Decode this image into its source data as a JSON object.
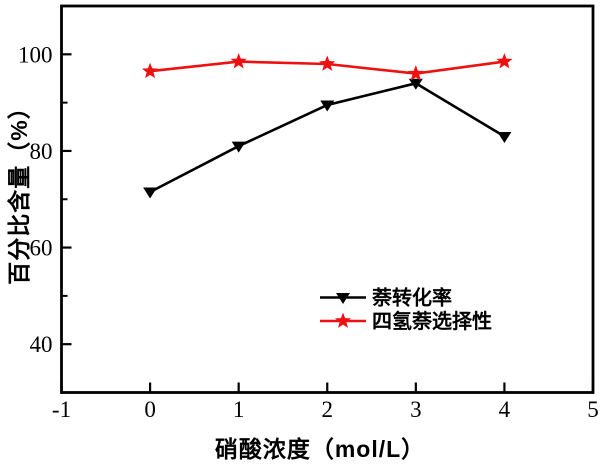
{
  "chart_data": {
    "type": "line",
    "title": "",
    "xlabel": "硝酸浓度（mol/L）",
    "ylabel": "百分比含量（%）",
    "x": [
      0,
      1,
      2,
      3,
      4
    ],
    "series": [
      {
        "name": "萘转化率",
        "color": "#000000",
        "marker": "triangle-down",
        "values": [
          71.5,
          81,
          89.5,
          94,
          83
        ]
      },
      {
        "name": "四氢萘选择性",
        "color": "#ee1111",
        "marker": "star",
        "values": [
          96.5,
          98.5,
          98,
          96,
          98.5
        ]
      }
    ],
    "xlim": [
      -1,
      5
    ],
    "ylim": [
      30,
      110
    ],
    "xticks": [
      -1,
      0,
      1,
      2,
      3,
      4,
      5
    ],
    "yticks": [
      40,
      60,
      80,
      100
    ],
    "y_minor_ticks": [
      50,
      70,
      90
    ],
    "grid": false,
    "legend_position": "inside-lower-right",
    "background": "#ffffff",
    "axis_color": "#000000"
  }
}
